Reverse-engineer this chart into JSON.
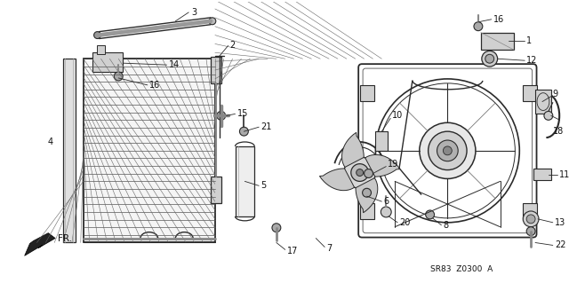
{
  "bg_color": "#ffffff",
  "line_color": "#2a2a2a",
  "label_color": "#111111",
  "diagram_code": "SR83  Z0300  A",
  "figsize": [
    6.4,
    3.19
  ],
  "dpi": 100
}
